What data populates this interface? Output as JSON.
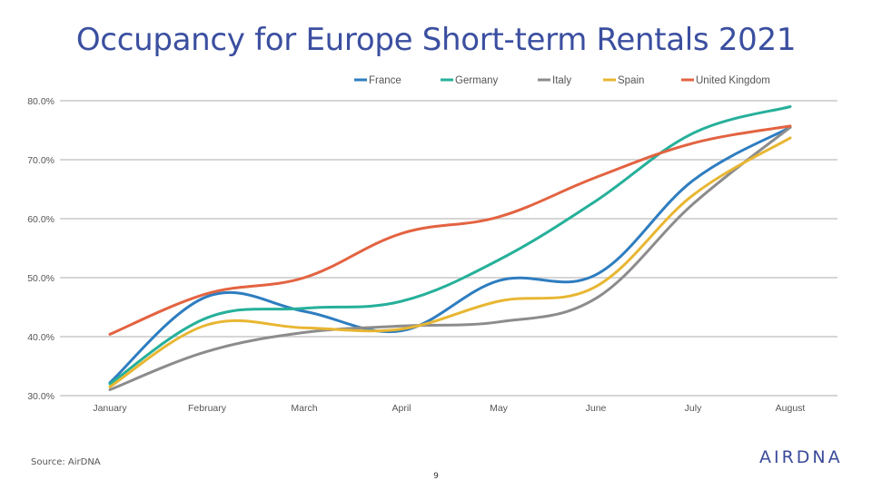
{
  "slide": {
    "title": "Occupancy for Europe Short-term Rentals 2021",
    "source": "Source: AirDNA",
    "page_number": "9",
    "logo_text": "AIRDNA"
  },
  "chart_data": {
    "type": "line",
    "title": "",
    "xlabel": "",
    "ylabel": "",
    "categories": [
      "January",
      "February",
      "March",
      "April",
      "May",
      "June",
      "July",
      "August"
    ],
    "y_ticks": [
      "80.0%",
      "70.0%",
      "60.0%",
      "50.0%",
      "40.0%",
      "30.0%"
    ],
    "ylim": [
      30,
      80
    ],
    "grid": true,
    "legend_position": "top-right",
    "series": [
      {
        "name": "France",
        "color": "#2e7dc0",
        "values": [
          32.2,
          46.8,
          44.3,
          41.0,
          49.5,
          50.5,
          66.5,
          75.5
        ]
      },
      {
        "name": "Germany",
        "color": "#26b09a",
        "values": [
          32.0,
          43.2,
          44.8,
          46.0,
          53.0,
          63.0,
          74.5,
          79.0
        ]
      },
      {
        "name": "Italy",
        "color": "#8c8c8c",
        "values": [
          31.0,
          37.5,
          40.7,
          41.8,
          42.5,
          46.5,
          62.5,
          75.5
        ]
      },
      {
        "name": "Spain",
        "color": "#e8b632",
        "values": [
          31.5,
          42.0,
          41.5,
          41.3,
          46.0,
          48.5,
          64.0,
          73.7
        ]
      },
      {
        "name": "United Kingdom",
        "color": "#e36341",
        "values": [
          40.4,
          47.3,
          50.0,
          57.5,
          60.3,
          67.0,
          72.8,
          75.7
        ]
      }
    ]
  }
}
